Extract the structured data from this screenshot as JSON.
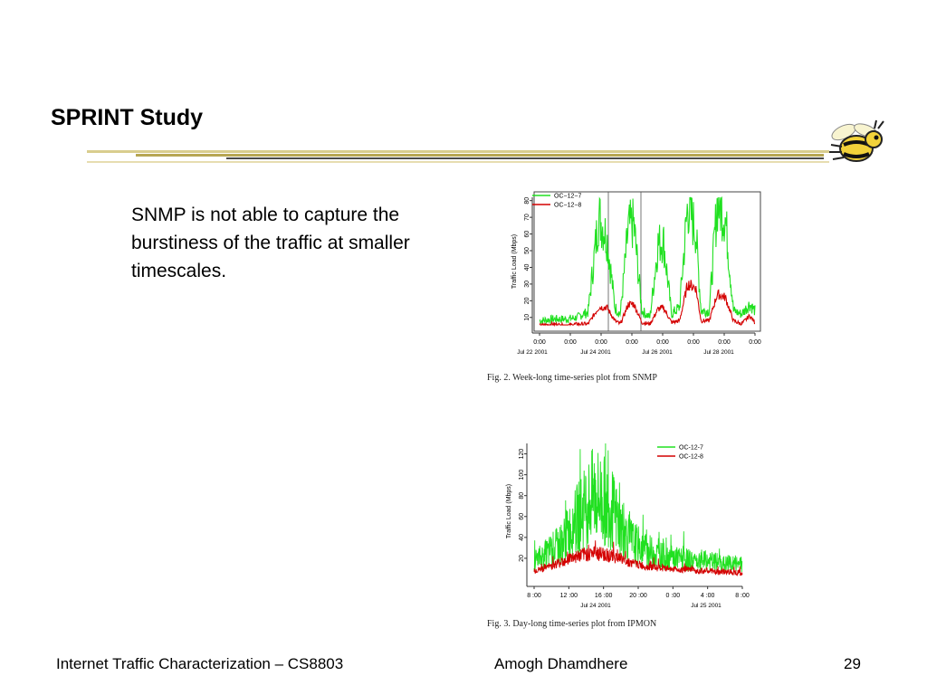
{
  "slide": {
    "title": "SPRINT Study",
    "bullet": "SNMP is not able to capture the burstiness of the traffic at smaller timescales."
  },
  "footer": {
    "left": "Internet Traffic Characterization – CS8803",
    "center": "Amogh Dhamdhere",
    "page": "29"
  },
  "colors": {
    "green": "#20e020",
    "red": "#d40000"
  },
  "chart_data": [
    {
      "type": "line",
      "ylabel": "Traffic Load (Mbps)",
      "ylim": [
        5,
        82
      ],
      "yticks": [
        "10",
        "20",
        "30",
        "40",
        "50",
        "60",
        "70",
        "80"
      ],
      "xticks": [
        "0:00",
        "0:00",
        "0:00",
        "0:00",
        "0:00",
        "0:00",
        "0:00",
        "0:00"
      ],
      "xdates": [
        "Jul 22 2001",
        "Jul 24 2001",
        "Jul 26 2001",
        "Jul 28 2001"
      ],
      "legend": [
        "OC−12−7",
        "OC−12−8"
      ],
      "legend_position": "top-left",
      "caption": "Fig. 2.    Week-long time-series plot from SNMP",
      "series": [
        {
          "name": "OC−12−7",
          "x": [
            0,
            0.5,
            1,
            1.4,
            1.6,
            1.8,
            2.2,
            2.5,
            2.8,
            3.0,
            3.3,
            3.5,
            3.8,
            4.1,
            4.4,
            4.6,
            4.9,
            5.2,
            5.5,
            5.8,
            6.0,
            6.3,
            6.6,
            6.9,
            7.2,
            7.5,
            7.8,
            8.0
          ],
          "values": [
            8,
            9,
            9,
            10,
            12,
            13,
            71,
            58,
            16,
            12,
            64,
            66,
            14,
            10,
            54,
            56,
            12,
            16,
            77,
            62,
            14,
            14,
            79,
            70,
            14,
            12,
            18,
            14
          ]
        },
        {
          "name": "OC−12−8",
          "x": [
            0,
            0.5,
            1,
            1.4,
            1.6,
            1.8,
            2.2,
            2.5,
            2.8,
            3.0,
            3.3,
            3.5,
            3.8,
            4.1,
            4.4,
            4.6,
            4.9,
            5.2,
            5.5,
            5.8,
            6.0,
            6.3,
            6.6,
            6.9,
            7.2,
            7.5,
            7.8,
            8.0
          ],
          "values": [
            5,
            6,
            5,
            6,
            6,
            6,
            16,
            16,
            8,
            6,
            18,
            18,
            7,
            6,
            15,
            16,
            7,
            8,
            30,
            28,
            8,
            8,
            24,
            22,
            8,
            6,
            11,
            7
          ]
        }
      ]
    },
    {
      "type": "line",
      "ylabel": "Traffic Load (Mbps)",
      "ylim": [
        0,
        130
      ],
      "yticks": [
        "20",
        "40",
        "60",
        "80",
        "100",
        "120"
      ],
      "xticks": [
        "8 :00",
        "12 :00",
        "16 :00",
        "20 :00",
        "0 :00",
        "4 :00",
        "8 :00"
      ],
      "xdates": [
        "Jul 24 2001",
        "Jul 25 2001"
      ],
      "legend": [
        "OC-12-7",
        "OC-12-8"
      ],
      "legend_position": "top-right",
      "caption": "Fig. 3.    Day-long time-series plot from IPMON",
      "series": [
        {
          "name": "OC-12-7",
          "x": [
            8,
            9,
            10,
            11,
            12,
            13,
            14,
            15,
            16,
            17,
            18,
            19,
            20,
            21,
            22,
            23,
            24,
            25,
            26,
            27,
            28,
            29,
            30,
            31,
            32
          ],
          "values": [
            18,
            22,
            28,
            33,
            45,
            58,
            70,
            82,
            75,
            66,
            50,
            38,
            32,
            28,
            24,
            22,
            20,
            19,
            18,
            18,
            17,
            16,
            14,
            15,
            14
          ]
        },
        {
          "name": "OC-12-8",
          "x": [
            8,
            9,
            10,
            11,
            12,
            13,
            14,
            15,
            16,
            17,
            18,
            19,
            20,
            21,
            22,
            23,
            24,
            25,
            26,
            27,
            28,
            29,
            30,
            31,
            32
          ],
          "values": [
            8,
            10,
            13,
            16,
            20,
            22,
            24,
            25,
            24,
            22,
            20,
            16,
            14,
            12,
            11,
            10,
            10,
            9,
            9,
            8,
            8,
            7,
            7,
            7,
            6
          ]
        }
      ]
    }
  ]
}
